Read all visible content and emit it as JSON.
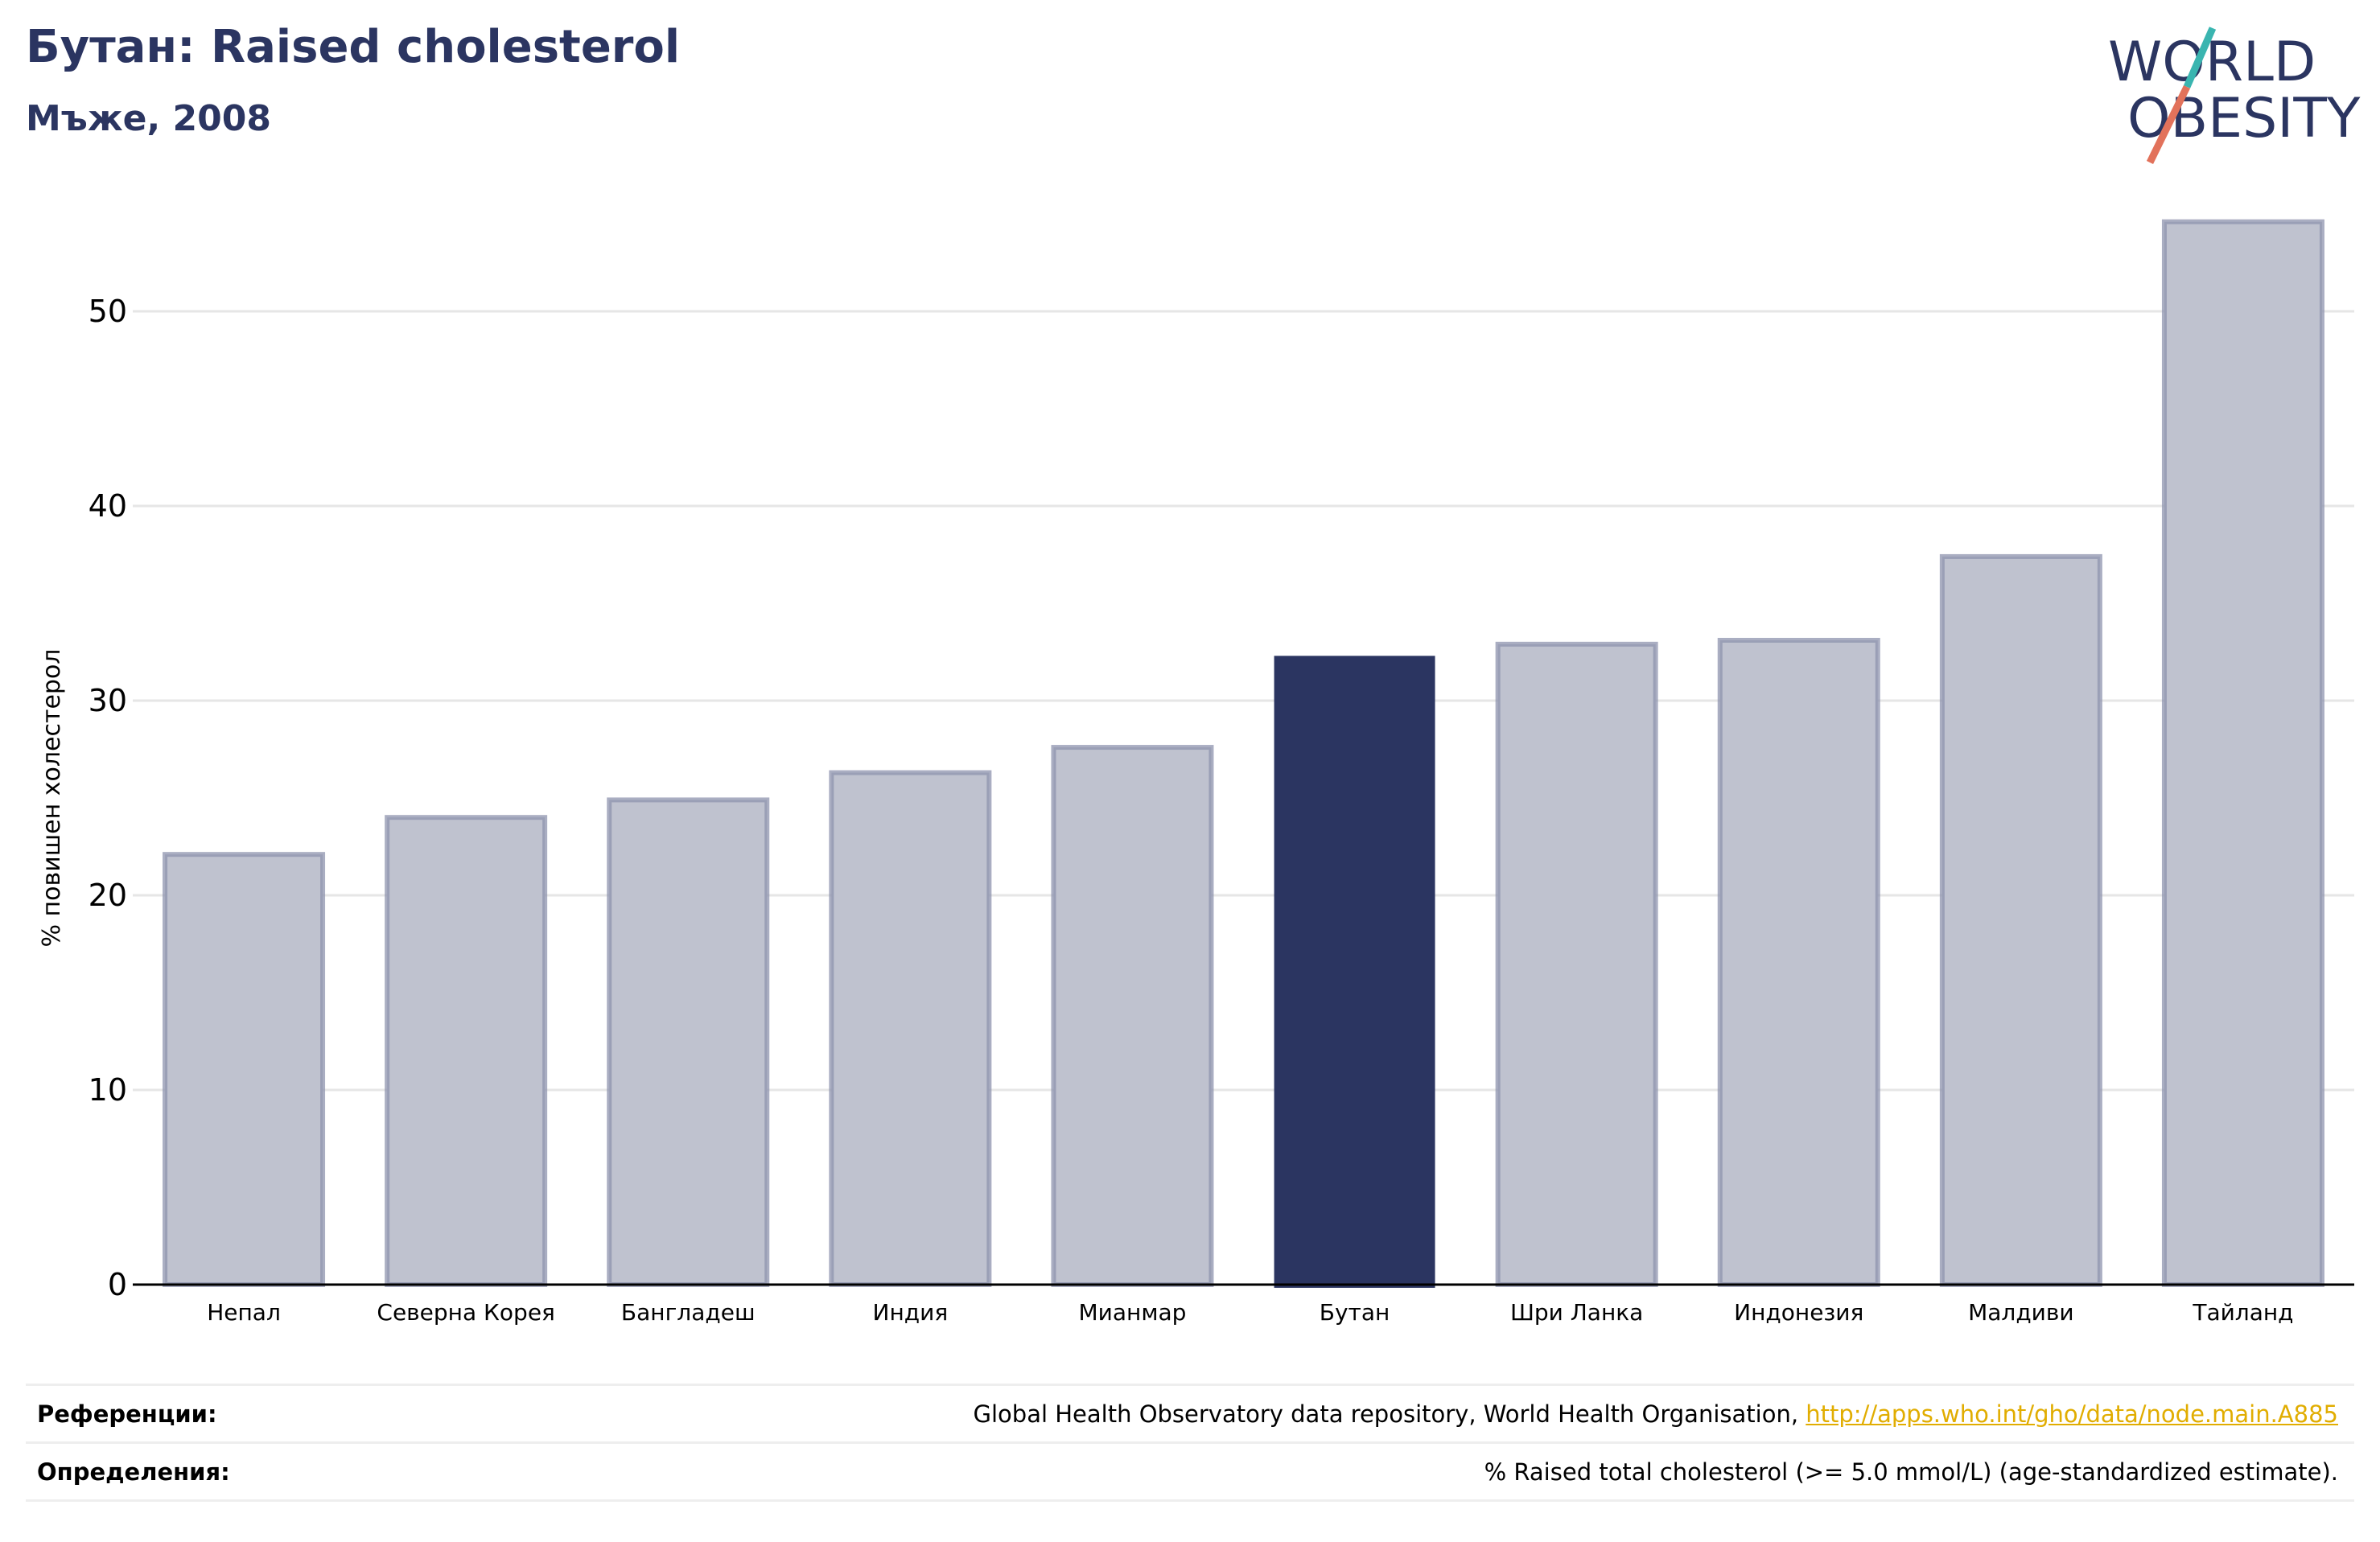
{
  "header": {
    "title": "Бутан: Raised cholesterol",
    "subtitle": "Мъже, 2008"
  },
  "logo": {
    "line1": "WORLD",
    "line2": "OBESITY"
  },
  "colors": {
    "highlight_bar": "#2b3561",
    "other_bar": "#bfc2cf",
    "other_bar_border": "#8d93ad",
    "grid": "#e6e6e6",
    "link": "#e1ad01",
    "logo_text": "#2b3561",
    "logo_slash_teal": "#3ab5b0",
    "logo_slash_red": "#e2725b"
  },
  "chart_data": {
    "type": "bar",
    "categories": [
      "Непал",
      "Северна Корея",
      "Бангладеш",
      "Индия",
      "Мианмар",
      "Бутан",
      "Шри Ланка",
      "Индонезия",
      "Малдиви",
      "Тайланд"
    ],
    "values": [
      22.1,
      24.0,
      24.9,
      26.3,
      27.6,
      32.3,
      32.9,
      33.1,
      37.4,
      54.6
    ],
    "highlight": "Бутан",
    "ylabel": "% повишен холестерол",
    "ylim": [
      0,
      57
    ],
    "yticks": [
      0,
      10,
      20,
      30,
      40,
      50
    ],
    "grid": true
  },
  "references": {
    "refs_label": "Референции:",
    "refs_text": "Global Health Observatory data repository, World Health Organisation,",
    "refs_link": "http://apps.who.int/gho/data/node.main.A885",
    "defs_label": "Определения:",
    "defs_text": "% Raised total cholesterol (>= 5.0 mmol/L) (age-standardized estimate)."
  }
}
